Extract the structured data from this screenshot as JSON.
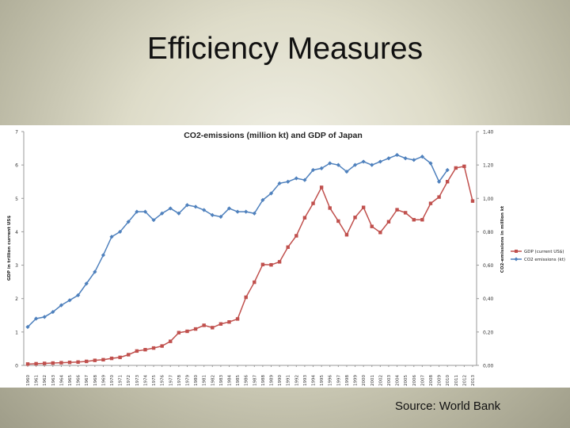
{
  "slide": {
    "title": "Efficiency Measures",
    "source": "Source: World Bank"
  },
  "chart_data": {
    "type": "line",
    "title": "CO2-emissions (million kt) and GDP of Japan",
    "xlabel": "",
    "ylabel": "GDP in trillion current US$",
    "y2label": "CO2-emissions in million kt",
    "ylim": [
      0,
      7
    ],
    "y2lim": [
      0,
      1.4
    ],
    "yticks": [
      "0",
      "1",
      "2",
      "3",
      "4",
      "5",
      "6",
      "7"
    ],
    "y2ticks": [
      "0,00",
      "0,20",
      "0,40",
      "0,60",
      "0,80",
      "1,00",
      "1,20",
      "1,40"
    ],
    "legend_position": "right",
    "x": [
      1960,
      1961,
      1962,
      1963,
      1964,
      1965,
      1966,
      1967,
      1968,
      1969,
      1970,
      1971,
      1972,
      1973,
      1974,
      1975,
      1976,
      1977,
      1978,
      1979,
      1980,
      1981,
      1982,
      1983,
      1984,
      1985,
      1986,
      1987,
      1988,
      1989,
      1990,
      1991,
      1992,
      1993,
      1994,
      1995,
      1996,
      1997,
      1998,
      1999,
      2000,
      2001,
      2002,
      2003,
      2004,
      2005,
      2006,
      2007,
      2008,
      2009,
      2010,
      2011,
      2012,
      2013
    ],
    "series": [
      {
        "name": "GDP (current US$)",
        "axis": "left",
        "color": "#c0504d",
        "marker": "square",
        "values": [
          0.04,
          0.05,
          0.06,
          0.07,
          0.08,
          0.09,
          0.1,
          0.12,
          0.15,
          0.17,
          0.21,
          0.24,
          0.32,
          0.43,
          0.47,
          0.52,
          0.58,
          0.72,
          0.98,
          1.02,
          1.09,
          1.2,
          1.13,
          1.24,
          1.3,
          1.39,
          2.04,
          2.49,
          3.02,
          3.01,
          3.1,
          3.54,
          3.88,
          4.42,
          4.85,
          5.33,
          4.71,
          4.32,
          3.91,
          4.43,
          4.73,
          4.16,
          3.98,
          4.3,
          4.66,
          4.57,
          4.36,
          4.36,
          4.85,
          5.04,
          5.5,
          5.91,
          5.96,
          4.92
        ]
      },
      {
        "name": "CO2 emissions (kt)",
        "axis": "right",
        "color": "#4f81bd",
        "marker": "diamond",
        "values": [
          0.23,
          0.28,
          0.29,
          0.32,
          0.36,
          0.39,
          0.42,
          0.49,
          0.56,
          0.66,
          0.77,
          0.8,
          0.86,
          0.92,
          0.92,
          0.87,
          0.91,
          0.94,
          0.91,
          0.96,
          0.95,
          0.93,
          0.9,
          0.89,
          0.94,
          0.92,
          0.92,
          0.91,
          0.99,
          1.03,
          1.09,
          1.1,
          1.12,
          1.11,
          1.17,
          1.18,
          1.21,
          1.2,
          1.16,
          1.2,
          1.22,
          1.2,
          1.22,
          1.24,
          1.26,
          1.24,
          1.23,
          1.25,
          1.21,
          1.1,
          1.17,
          null,
          null,
          null
        ]
      }
    ]
  }
}
